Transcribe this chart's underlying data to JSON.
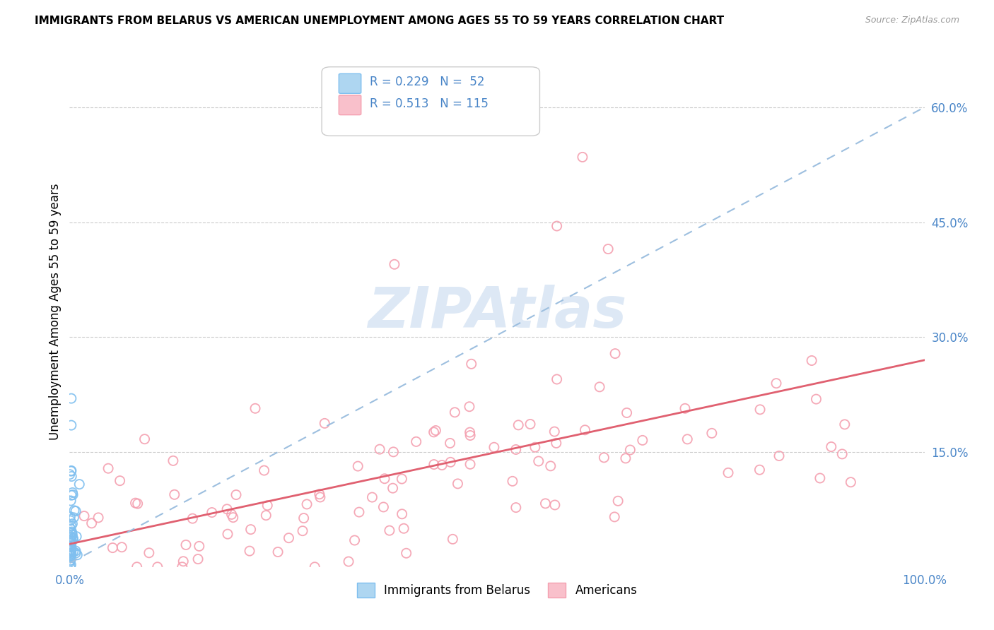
{
  "title": "IMMIGRANTS FROM BELARUS VS AMERICAN UNEMPLOYMENT AMONG AGES 55 TO 59 YEARS CORRELATION CHART",
  "source": "Source: ZipAtlas.com",
  "ylabel": "Unemployment Among Ages 55 to 59 years",
  "xlim": [
    0,
    1.0
  ],
  "ylim": [
    0,
    0.666
  ],
  "blue_color": "#7fbfef",
  "pink_color": "#f4a0b0",
  "trend_blue_color": "#9dbfdf",
  "trend_pink_color": "#e06070",
  "watermark": "ZIPAtlas",
  "watermark_color": "#dde8f5",
  "blue_R": 0.229,
  "blue_N": 52,
  "pink_R": 0.513,
  "pink_N": 115,
  "legend_color": "#4a86c8",
  "grid_color": "#cccccc",
  "tick_color": "#4a86c8"
}
